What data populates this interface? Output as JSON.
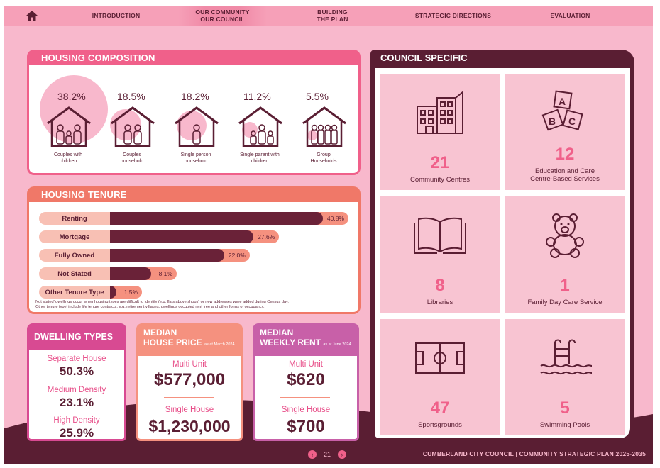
{
  "nav": {
    "items": [
      {
        "label": "INTRODUCTION"
      },
      {
        "label": "OUR COMMUNITY\nOUR COUNCIL"
      },
      {
        "label": "BUILDING\nTHE PLAN"
      },
      {
        "label": "STRATEGIC DIRECTIONS"
      },
      {
        "label": "EVALUATION"
      }
    ]
  },
  "housing_composition": {
    "title": "HOUSING COMPOSITION",
    "items": [
      {
        "pct": "38.2%",
        "value": 38.2,
        "label": "Couples with children"
      },
      {
        "pct": "18.5%",
        "value": 18.5,
        "label": "Couples household"
      },
      {
        "pct": "18.2%",
        "value": 18.2,
        "label": "Single person household"
      },
      {
        "pct": "11.2%",
        "value": 11.2,
        "label": "Single parent with children"
      },
      {
        "pct": "5.5%",
        "value": 5.5,
        "label": "Group Households"
      }
    ]
  },
  "housing_tenure": {
    "title": "HOUSING TENURE",
    "rows": [
      {
        "label": "Renting",
        "value_text": "40.8%",
        "value": 40.8
      },
      {
        "label": "Mortgage",
        "value_text": "27.6%",
        "value": 27.6
      },
      {
        "label": "Fully Owned",
        "value_text": "22.0%",
        "value": 22.0
      },
      {
        "label": "Not Stated",
        "value_text": "8.1%",
        "value": 8.1
      },
      {
        "label": "Other Tenure Type",
        "value_text": "1.5%",
        "value": 1.5
      }
    ],
    "note1": "'Not stated' dwellings occur when housing types are difficult to identify (e.g. flats above shops) or new addresses were added during Census day.",
    "note2": "'Other tenure type' include life tenure contracts, e.g. retirement villages, dwellings occupied rent free and other forms of occupancy."
  },
  "dwelling_types": {
    "title": "DWELLING TYPES",
    "items": [
      {
        "label": "Separate House",
        "value": "50.3%"
      },
      {
        "label": "Medium Density",
        "value": "23.1%"
      },
      {
        "label": "High Density",
        "value": "25.9%"
      }
    ]
  },
  "median_house_price": {
    "title_line1": "MEDIAN",
    "title_line2": "HOUSE PRICE",
    "asof": "as at March 2024",
    "multi_label": "Multi Unit",
    "multi_value": "$577,000",
    "single_label": "Single House",
    "single_value": "$1,230,000"
  },
  "median_weekly_rent": {
    "title_line1": "MEDIAN",
    "title_line2": "WEEKLY RENT",
    "asof": "as at June 2024",
    "multi_label": "Multi Unit",
    "multi_value": "$620",
    "single_label": "Single House",
    "single_value": "$700"
  },
  "council_specific": {
    "title": "COUNCIL SPECIFIC",
    "tiles": [
      {
        "num": "21",
        "label": "Community Centres",
        "icon": "building-icon"
      },
      {
        "num": "12",
        "label": "Education and Care\nCentre-Based Services",
        "icon": "abc-blocks-icon"
      },
      {
        "num": "8",
        "label": "Libraries",
        "icon": "open-book-icon"
      },
      {
        "num": "1",
        "label": "Family Day Care Service",
        "icon": "teddy-bear-icon"
      },
      {
        "num": "47",
        "label": "Sportsgrounds",
        "icon": "sports-field-icon"
      },
      {
        "num": "5",
        "label": "Swimming Pools",
        "icon": "pool-ladder-icon"
      }
    ]
  },
  "footer": {
    "page_number": "21",
    "text": "CUMBERLAND CITY COUNCIL  |  COMMUNITY STRATEGIC PLAN 2025-2035"
  },
  "colors": {
    "background": "#f8b8cc",
    "maroon": "#5a1e33",
    "pink": "#f0608a",
    "coral": "#f07868",
    "magenta": "#d84a92"
  }
}
